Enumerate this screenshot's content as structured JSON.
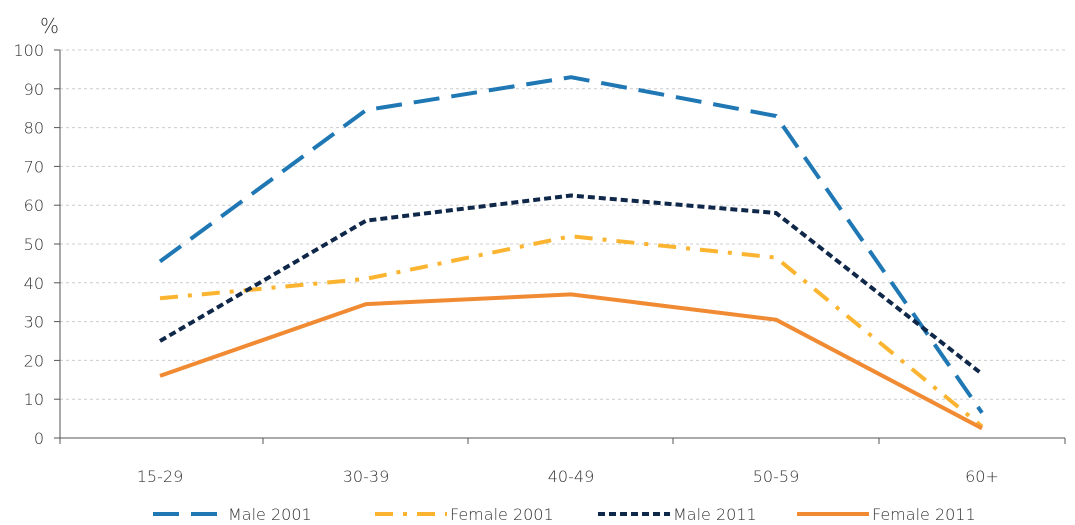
{
  "chart_data": {
    "type": "line",
    "title": "",
    "unit_label": "%",
    "xlabel": "",
    "ylabel": "",
    "categories": [
      "15-29",
      "30-39",
      "40-49",
      "50-59",
      "60+"
    ],
    "ylim": [
      0,
      100
    ],
    "yticks": [
      0,
      10,
      20,
      30,
      40,
      50,
      60,
      70,
      80,
      90,
      100
    ],
    "grid": true,
    "legend_position": "bottom",
    "series": [
      {
        "name": "Male 2001",
        "values": [
          45.5,
          84.5,
          93.0,
          83.0,
          6.5
        ],
        "color": "#1f77b4",
        "style": "long-dash"
      },
      {
        "name": "Female 2001",
        "values": [
          36.0,
          41.0,
          52.0,
          46.5,
          3.0
        ],
        "color": "#fbb430",
        "style": "dash-dot"
      },
      {
        "name": "Male 2011",
        "values": [
          25.0,
          56.0,
          62.5,
          58.0,
          16.5
        ],
        "color": "#0f2748",
        "style": "short-dash"
      },
      {
        "name": "Female 2011",
        "values": [
          16.0,
          34.5,
          37.0,
          30.5,
          2.5
        ],
        "color": "#f08a33",
        "style": "solid"
      }
    ]
  }
}
